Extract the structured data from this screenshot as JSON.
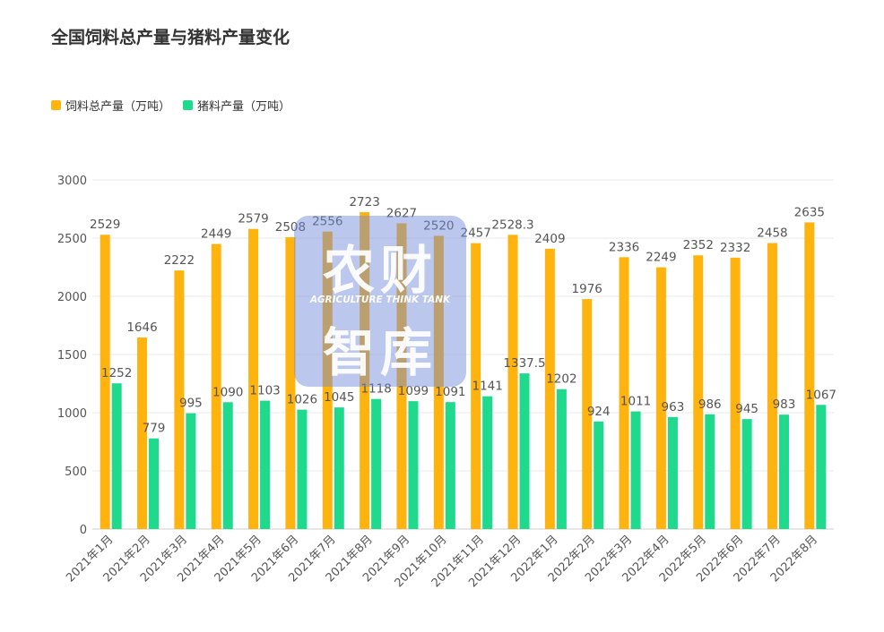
{
  "title": "全国饲料总产量与猪料产量变化",
  "colors": {
    "series1": "#FFB30F",
    "series2": "#1FD98C",
    "grid": "#eaeaea",
    "text": "#555555"
  },
  "watermark": {
    "line1": "农财",
    "line2": "AGRICULTURE THINK TANK",
    "line3": "智库"
  },
  "chart_data": {
    "type": "bar",
    "title": "全国饲料总产量与猪料产量变化",
    "legend_position": "top-left",
    "grid": true,
    "ylim": [
      0,
      3000
    ],
    "yticks": [
      0,
      500,
      1000,
      1500,
      2000,
      2500,
      3000
    ],
    "categories": [
      "2021年1月",
      "2021年2月",
      "2021年3月",
      "2021年4月",
      "2021年5月",
      "2021年6月",
      "2021年7月",
      "2021年8月",
      "2021年9月",
      "2021年10月",
      "2021年11月",
      "2021年12月",
      "2022年1月",
      "2022年2月",
      "2022年3月",
      "2022年4月",
      "2022年5月",
      "2022年6月",
      "2022年7月",
      "2022年8月"
    ],
    "series": [
      {
        "name": "饲料总产量（万吨）",
        "values": [
          2529,
          1646,
          2222,
          2449,
          2579,
          2508,
          2556,
          2723,
          2627,
          2520,
          2457,
          2528.3,
          2409,
          1976,
          2336,
          2249,
          2352,
          2332,
          2458,
          2635
        ]
      },
      {
        "name": "猪料产量（万吨）",
        "values": [
          1252,
          779,
          995,
          1090,
          1103,
          1026,
          1045,
          1118,
          1099,
          1091,
          1141,
          1337.5,
          1202,
          924,
          1011,
          963,
          986,
          945,
          983,
          1067
        ]
      }
    ]
  }
}
